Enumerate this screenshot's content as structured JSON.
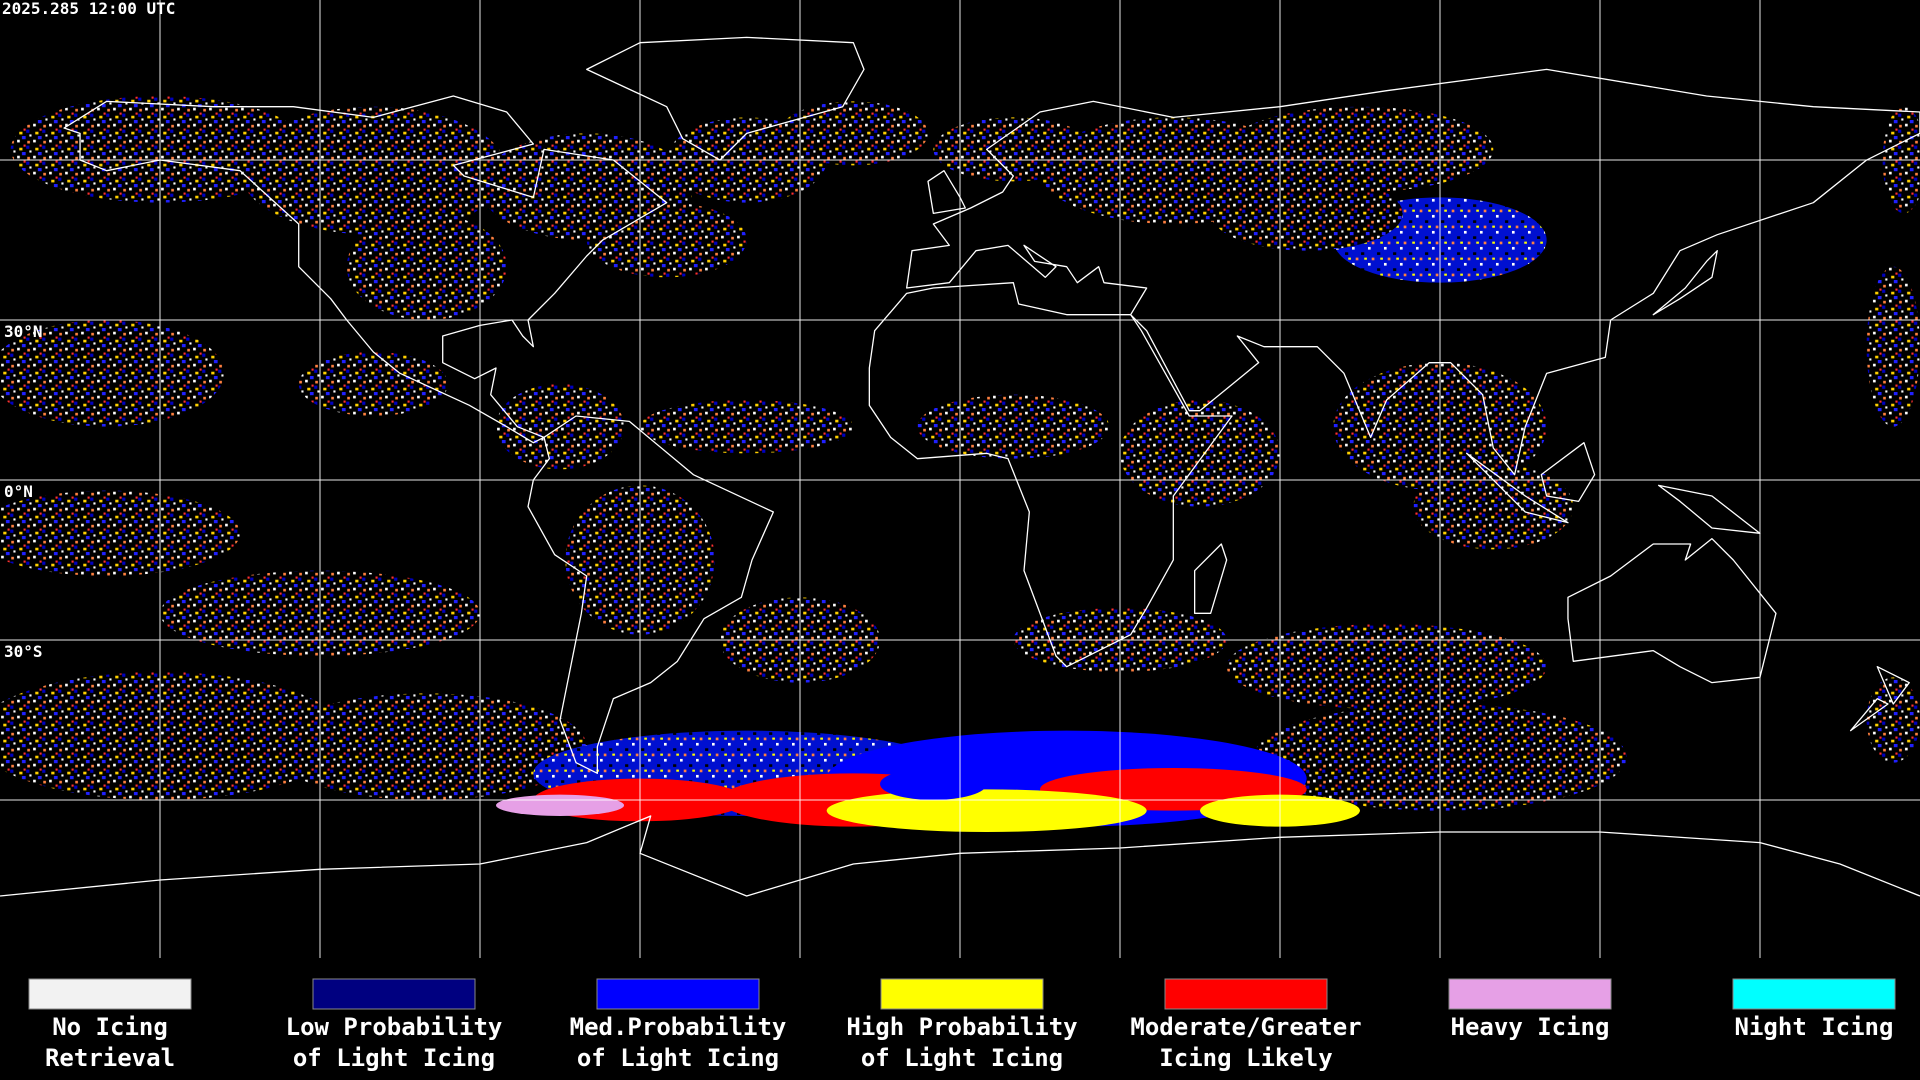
{
  "header": {
    "timestamp": "2025.285 12:00 UTC"
  },
  "lat_labels": [
    "30°N",
    "0°N",
    "30°S"
  ],
  "legend": [
    {
      "color": "#f2f2f2",
      "lines": [
        "No Icing",
        "Retrieval"
      ]
    },
    {
      "color": "#000080",
      "lines": [
        "Low Probability",
        "of Light Icing"
      ]
    },
    {
      "color": "#0000ff",
      "lines": [
        "Med.Probability",
        "of Light Icing"
      ]
    },
    {
      "color": "#ffff00",
      "lines": [
        "High Probability",
        "of Light Icing"
      ]
    },
    {
      "color": "#ff0000",
      "lines": [
        "Moderate/Greater",
        "Icing Likely"
      ]
    },
    {
      "color": "#e6a0e6",
      "lines": [
        "Heavy Icing"
      ]
    },
    {
      "color": "#00ffff",
      "lines": [
        "Night Icing"
      ]
    }
  ]
}
